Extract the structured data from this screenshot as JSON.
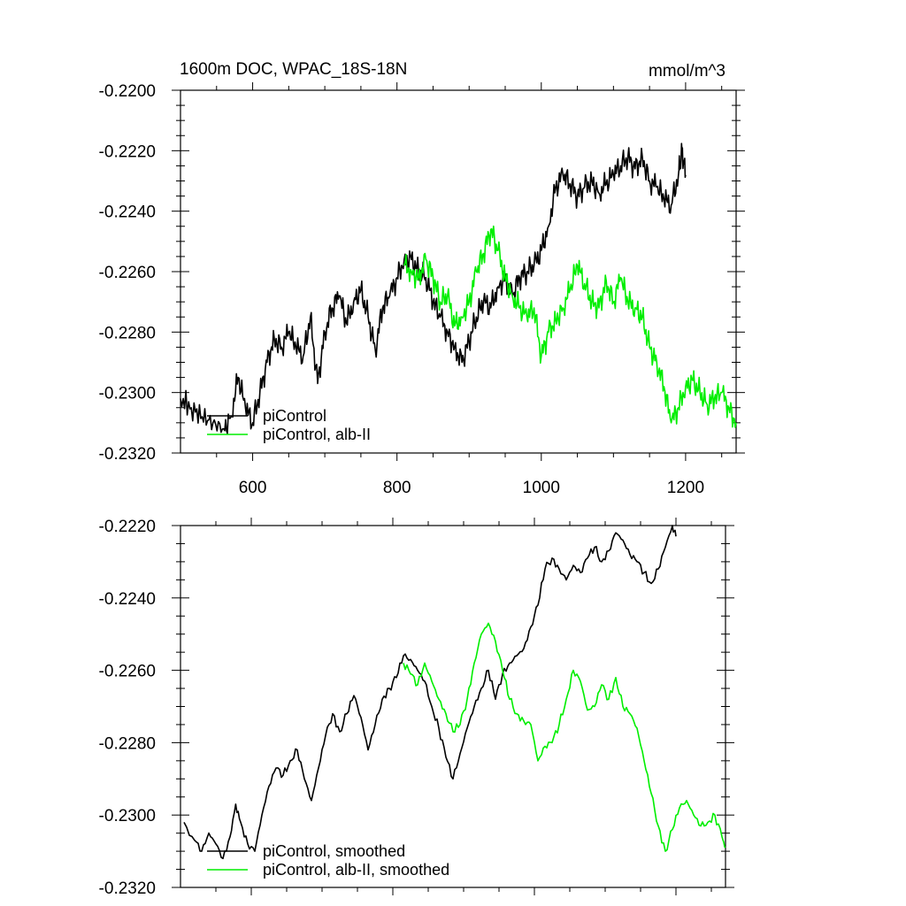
{
  "figure": {
    "title": "1600m DOC, WPAC_18S-18N",
    "units": "mmol/m^3"
  },
  "chart_data": [
    {
      "type": "line",
      "title": "1600m DOC, WPAC_18S-18N",
      "units": "mmol/m^3",
      "xlim": [
        500,
        1270
      ],
      "ylim": [
        -0.232,
        -0.22
      ],
      "xticks": [
        600,
        800,
        1000,
        1200
      ],
      "xtick_labels": [
        "600",
        "800",
        "1000",
        "1200"
      ],
      "yticks": [
        -0.232,
        -0.23,
        -0.228,
        -0.226,
        -0.224,
        -0.222,
        -0.22
      ],
      "ytick_labels": [
        "-0.2320",
        "-0.2300",
        "-0.2280",
        "-0.2260",
        "-0.2240",
        "-0.2220",
        "-0.2200"
      ],
      "legend_position": "bottom-left",
      "series": [
        {
          "name": "piControl",
          "color": "#000000",
          "x": [
            500,
            515,
            530,
            545,
            560,
            570,
            580,
            590,
            600,
            610,
            620,
            630,
            640,
            650,
            660,
            670,
            680,
            690,
            700,
            710,
            720,
            730,
            740,
            750,
            760,
            770,
            780,
            790,
            800,
            810,
            820,
            830,
            840,
            850,
            860,
            870,
            880,
            890,
            900,
            910,
            920,
            930,
            940,
            950,
            960,
            970,
            980,
            990,
            1000,
            1010,
            1020,
            1030,
            1040,
            1050,
            1060,
            1070,
            1080,
            1090,
            1100,
            1110,
            1120,
            1130,
            1140,
            1150,
            1160,
            1170,
            1180,
            1190,
            1195,
            1200
          ],
          "y": [
            -0.2302,
            -0.2305,
            -0.2308,
            -0.231,
            -0.2312,
            -0.2308,
            -0.2295,
            -0.2305,
            -0.231,
            -0.23,
            -0.229,
            -0.2282,
            -0.2285,
            -0.228,
            -0.2285,
            -0.2288,
            -0.2275,
            -0.2297,
            -0.228,
            -0.2272,
            -0.2268,
            -0.2277,
            -0.227,
            -0.2266,
            -0.2275,
            -0.2286,
            -0.2272,
            -0.2268,
            -0.2262,
            -0.2256,
            -0.2256,
            -0.226,
            -0.2262,
            -0.227,
            -0.2275,
            -0.228,
            -0.2285,
            -0.229,
            -0.2283,
            -0.2275,
            -0.227,
            -0.2272,
            -0.2265,
            -0.2262,
            -0.2268,
            -0.2262,
            -0.226,
            -0.2258,
            -0.2253,
            -0.2245,
            -0.2232,
            -0.2228,
            -0.2231,
            -0.2235,
            -0.2232,
            -0.223,
            -0.2234,
            -0.2231,
            -0.2228,
            -0.2225,
            -0.2222,
            -0.2226,
            -0.2222,
            -0.223,
            -0.2232,
            -0.2236,
            -0.2238,
            -0.2228,
            -0.222,
            -0.2228
          ]
        },
        {
          "name": "piControl, alb-II",
          "color": "#00ee00",
          "x": [
            810,
            820,
            830,
            840,
            850,
            860,
            870,
            880,
            890,
            900,
            910,
            920,
            930,
            940,
            950,
            960,
            970,
            980,
            990,
            1000,
            1010,
            1020,
            1030,
            1040,
            1050,
            1060,
            1070,
            1080,
            1090,
            1100,
            1110,
            1120,
            1130,
            1140,
            1150,
            1160,
            1170,
            1180,
            1190,
            1200,
            1210,
            1220,
            1230,
            1240,
            1250,
            1260,
            1270
          ],
          "y": [
            -0.2258,
            -0.226,
            -0.2262,
            -0.2256,
            -0.2262,
            -0.227,
            -0.2268,
            -0.2278,
            -0.2275,
            -0.227,
            -0.226,
            -0.2254,
            -0.2246,
            -0.2253,
            -0.2262,
            -0.2268,
            -0.2272,
            -0.2275,
            -0.2272,
            -0.2288,
            -0.228,
            -0.2276,
            -0.2272,
            -0.2266,
            -0.2258,
            -0.2264,
            -0.227,
            -0.2272,
            -0.2263,
            -0.227,
            -0.2262,
            -0.227,
            -0.2272,
            -0.2275,
            -0.2285,
            -0.229,
            -0.2298,
            -0.231,
            -0.2305,
            -0.2298,
            -0.2296,
            -0.23,
            -0.2304,
            -0.2302,
            -0.23,
            -0.2305,
            -0.231
          ]
        }
      ]
    },
    {
      "type": "line",
      "xlim": [
        500,
        1270
      ],
      "ylim": [
        -0.232,
        -0.222
      ],
      "xticks": [
        600,
        800,
        1000,
        1200
      ],
      "yticks": [
        -0.232,
        -0.23,
        -0.228,
        -0.226,
        -0.224,
        -0.222
      ],
      "ytick_labels": [
        "-0.2320",
        "-0.2300",
        "-0.2280",
        "-0.2260",
        "-0.2240",
        "-0.2220"
      ],
      "legend_position": "bottom-left",
      "series": [
        {
          "name": "piControl, smoothed",
          "color": "#000000",
          "x": [
            505,
            520,
            530,
            540,
            550,
            560,
            570,
            578,
            585,
            595,
            605,
            615,
            625,
            635,
            645,
            655,
            665,
            675,
            685,
            695,
            705,
            715,
            725,
            735,
            745,
            755,
            765,
            775,
            785,
            795,
            805,
            815,
            825,
            835,
            845,
            855,
            865,
            875,
            885,
            895,
            905,
            915,
            925,
            935,
            945,
            955,
            965,
            975,
            985,
            995,
            1005,
            1015,
            1025,
            1035,
            1045,
            1055,
            1065,
            1075,
            1085,
            1095,
            1105,
            1115,
            1125,
            1135,
            1145,
            1155,
            1165,
            1175,
            1185,
            1195,
            1200
          ],
          "y": [
            -0.2302,
            -0.2307,
            -0.231,
            -0.2305,
            -0.2308,
            -0.2312,
            -0.2306,
            -0.2297,
            -0.2302,
            -0.2308,
            -0.231,
            -0.23,
            -0.2292,
            -0.2287,
            -0.2289,
            -0.2285,
            -0.2282,
            -0.229,
            -0.2296,
            -0.2287,
            -0.2278,
            -0.2272,
            -0.2277,
            -0.2272,
            -0.2267,
            -0.2273,
            -0.2282,
            -0.2275,
            -0.2268,
            -0.2265,
            -0.2262,
            -0.2256,
            -0.2257,
            -0.226,
            -0.2263,
            -0.227,
            -0.2276,
            -0.2284,
            -0.229,
            -0.2283,
            -0.2276,
            -0.227,
            -0.2265,
            -0.226,
            -0.2268,
            -0.2261,
            -0.2258,
            -0.2256,
            -0.2254,
            -0.2248,
            -0.2242,
            -0.2232,
            -0.2229,
            -0.2232,
            -0.2235,
            -0.2231,
            -0.2233,
            -0.2229,
            -0.2226,
            -0.223,
            -0.2227,
            -0.2222,
            -0.2224,
            -0.2228,
            -0.223,
            -0.2233,
            -0.2236,
            -0.2232,
            -0.2226,
            -0.222,
            -0.2223
          ]
        },
        {
          "name": "piControl, alb-II, smoothed",
          "color": "#00ee00",
          "x": [
            815,
            825,
            835,
            845,
            855,
            865,
            875,
            885,
            895,
            905,
            915,
            925,
            935,
            945,
            955,
            965,
            975,
            985,
            995,
            1005,
            1015,
            1025,
            1035,
            1045,
            1055,
            1065,
            1075,
            1085,
            1095,
            1105,
            1115,
            1125,
            1135,
            1145,
            1155,
            1165,
            1175,
            1185,
            1195,
            1205,
            1215,
            1225,
            1235,
            1245,
            1255,
            1265,
            1270
          ],
          "y": [
            -0.2258,
            -0.2261,
            -0.2264,
            -0.2258,
            -0.2263,
            -0.2268,
            -0.2272,
            -0.2277,
            -0.2275,
            -0.2268,
            -0.2258,
            -0.225,
            -0.2247,
            -0.2252,
            -0.226,
            -0.2268,
            -0.2272,
            -0.2274,
            -0.2275,
            -0.2285,
            -0.2281,
            -0.228,
            -0.2275,
            -0.2268,
            -0.226,
            -0.2263,
            -0.2271,
            -0.227,
            -0.2264,
            -0.2268,
            -0.2262,
            -0.227,
            -0.2272,
            -0.2276,
            -0.2285,
            -0.2294,
            -0.2303,
            -0.231,
            -0.2304,
            -0.2298,
            -0.2296,
            -0.23,
            -0.2303,
            -0.2302,
            -0.23,
            -0.2306,
            -0.2309
          ]
        }
      ]
    }
  ]
}
